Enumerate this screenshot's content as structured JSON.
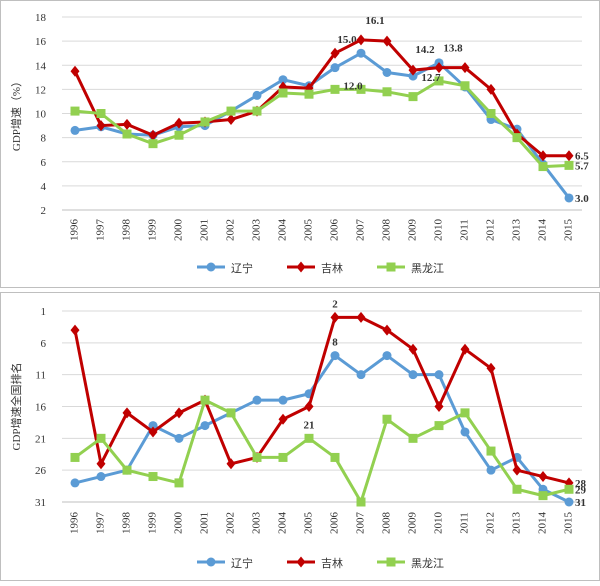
{
  "chart_data": [
    {
      "type": "line",
      "ylabel": "GDP增速（%）",
      "categories": [
        "1996",
        "1997",
        "1998",
        "1999",
        "2000",
        "2001",
        "2002",
        "2003",
        "2004",
        "2005",
        "2006",
        "2007",
        "2008",
        "2009",
        "2010",
        "2011",
        "2012",
        "2013",
        "2014",
        "2015"
      ],
      "ylim": [
        2,
        18
      ],
      "yticks": [
        2,
        4,
        6,
        8,
        10,
        12,
        14,
        16,
        18
      ],
      "grid": true,
      "legend": "bottom",
      "series": [
        {
          "name": "辽宁",
          "color": "#5b9bd5",
          "marker": "circle",
          "values": [
            8.6,
            8.9,
            8.3,
            8.2,
            8.9,
            9.0,
            10.2,
            11.5,
            12.8,
            12.3,
            13.8,
            15.0,
            13.4,
            13.1,
            14.2,
            12.2,
            9.5,
            8.7,
            5.8,
            3.0
          ],
          "value_labels": [
            null,
            null,
            null,
            null,
            null,
            null,
            null,
            null,
            null,
            null,
            null,
            "15.0",
            null,
            null,
            "14.2",
            null,
            null,
            null,
            null,
            "3.0"
          ]
        },
        {
          "name": "吉林",
          "color": "#c00000",
          "marker": "diamond",
          "values": [
            13.5,
            9.0,
            9.1,
            8.2,
            9.2,
            9.3,
            9.5,
            10.2,
            12.2,
            12.1,
            15.0,
            16.1,
            16.0,
            13.6,
            13.8,
            13.8,
            12.0,
            8.3,
            6.5,
            6.5
          ],
          "value_labels": [
            null,
            null,
            null,
            null,
            null,
            null,
            null,
            null,
            null,
            null,
            null,
            "16.1",
            null,
            null,
            "13.8",
            null,
            null,
            null,
            null,
            "6.5"
          ]
        },
        {
          "name": "黑龙江",
          "color": "#92d050",
          "marker": "square",
          "values": [
            10.2,
            10.0,
            8.3,
            7.5,
            8.2,
            9.3,
            10.2,
            10.2,
            11.7,
            11.6,
            12.0,
            12.0,
            11.8,
            11.4,
            12.7,
            12.3,
            10.0,
            8.0,
            5.6,
            5.7
          ],
          "value_labels": [
            null,
            null,
            null,
            null,
            null,
            null,
            null,
            null,
            null,
            null,
            null,
            "12.0",
            null,
            null,
            "12.7",
            null,
            null,
            null,
            null,
            "5.7"
          ]
        }
      ]
    },
    {
      "type": "line",
      "ylabel": "GDP增速全国排名",
      "categories": [
        "1996",
        "1997",
        "1998",
        "1999",
        "2000",
        "2001",
        "2002",
        "2003",
        "2004",
        "2005",
        "2006",
        "2007",
        "2008",
        "2009",
        "2010",
        "2011",
        "2012",
        "2013",
        "2014",
        "2015"
      ],
      "ylim": [
        31,
        1
      ],
      "yticks": [
        1,
        6,
        11,
        16,
        21,
        26,
        31
      ],
      "grid": true,
      "legend": "bottom",
      "series": [
        {
          "name": "辽宁",
          "color": "#5b9bd5",
          "marker": "circle",
          "values": [
            28,
            27,
            26,
            19,
            21,
            19,
            17,
            15,
            15,
            14,
            8,
            11,
            8,
            11,
            11,
            20,
            26,
            24,
            29,
            31
          ],
          "value_labels": [
            null,
            null,
            null,
            null,
            null,
            null,
            null,
            null,
            null,
            null,
            "8",
            null,
            null,
            null,
            null,
            null,
            null,
            null,
            null,
            "31"
          ]
        },
        {
          "name": "吉林",
          "color": "#c00000",
          "marker": "diamond",
          "values": [
            4,
            25,
            17,
            20,
            17,
            15,
            25,
            24,
            18,
            16,
            2,
            2,
            4,
            7,
            16,
            7,
            10,
            26,
            27,
            28
          ],
          "value_labels": [
            null,
            null,
            null,
            null,
            null,
            null,
            null,
            null,
            null,
            null,
            "2",
            null,
            null,
            null,
            null,
            null,
            null,
            null,
            null,
            "28"
          ]
        },
        {
          "name": "黑龙江",
          "color": "#92d050",
          "marker": "square",
          "values": [
            24,
            21,
            26,
            27,
            28,
            15,
            17,
            24,
            24,
            21,
            24,
            31,
            18,
            21,
            19,
            17,
            23,
            29,
            30,
            29
          ],
          "value_labels": [
            null,
            null,
            null,
            null,
            null,
            null,
            null,
            null,
            null,
            21,
            null,
            null,
            null,
            null,
            null,
            null,
            null,
            null,
            null,
            "29"
          ]
        }
      ]
    }
  ]
}
